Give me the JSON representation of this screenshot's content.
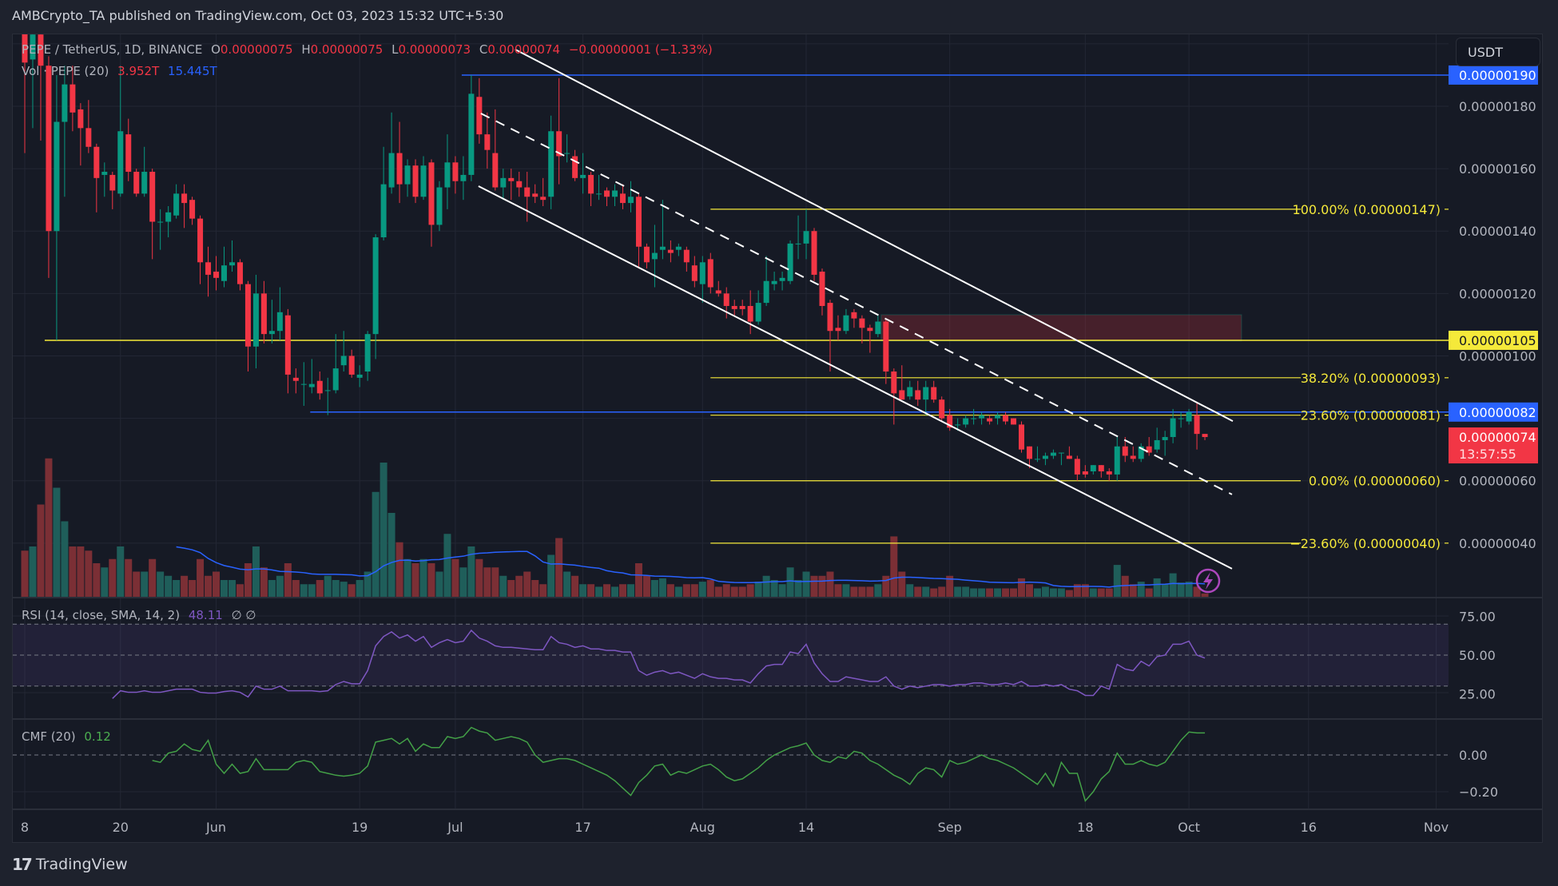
{
  "header": {
    "publish_line": "AMBCrypto_TA published on TradingView.com, Oct 03, 2023 15:32 UTC+5:30"
  },
  "legend": {
    "symbol": "PEPE / TetherUS, 1D, BINANCE",
    "o_label": "O",
    "o_value": "0.00000075",
    "h_label": "H",
    "h_value": "0.00000075",
    "l_label": "L",
    "l_value": "0.00000073",
    "c_label": "C",
    "c_value": "0.00000074",
    "change": "−0.00000001 (−1.33%)",
    "vol_label": "Vol · PEPE (20)",
    "vol_value": "3.952T",
    "vol_ma_value": "15.445T"
  },
  "currency_button": "USDT",
  "rsi_legend": {
    "label": "RSI (14, close, SMA, 14, 2)",
    "value": "48.11",
    "extra": "∅  ∅"
  },
  "cmf_legend": {
    "label": "CMF (20)",
    "value": "0.12"
  },
  "footer": {
    "brand": "TradingView",
    "logo_glyph": "17"
  },
  "colors": {
    "up": "#089981",
    "down": "#f23645",
    "vol_up": "#1f5e5a",
    "vol_down": "#7b2f35",
    "vol_ma": "#2962ff",
    "rsi": "#7e57c2",
    "cmf": "#43a047",
    "fib": "#f5e93a",
    "level_blue": "#2962ff",
    "level_yellow": "#f5e93a",
    "zone": "#6b1f2f",
    "channel": "#ffffff",
    "alert": "#ab47bc"
  },
  "chart_data": {
    "type": "candlestick",
    "price_unit": "1e-8 USDT",
    "start_date": "2023-05-08",
    "candles_ohlc": [
      [
        210,
        220,
        165,
        194
      ],
      [
        195,
        212,
        173,
        203
      ],
      [
        203,
        215,
        169,
        193
      ],
      [
        193,
        196,
        125,
        140
      ],
      [
        140,
        190,
        105,
        175
      ],
      [
        175,
        193,
        151,
        187
      ],
      [
        187,
        193,
        172,
        178
      ],
      [
        179,
        181,
        161,
        173
      ],
      [
        173,
        182,
        165,
        167
      ],
      [
        167,
        168,
        146,
        157
      ],
      [
        158,
        162,
        151,
        159
      ],
      [
        158,
        159,
        147,
        153
      ],
      [
        152,
        193,
        151,
        172
      ],
      [
        171,
        176,
        156,
        159
      ],
      [
        159,
        160,
        151,
        152
      ],
      [
        152,
        167,
        151,
        159
      ],
      [
        159,
        160,
        131,
        143
      ],
      [
        143,
        147,
        134,
        143
      ],
      [
        143,
        148,
        138,
        146
      ],
      [
        145,
        155,
        144,
        152
      ],
      [
        152,
        155,
        141,
        149
      ],
      [
        150,
        151,
        142,
        144
      ],
      [
        144,
        145,
        123,
        130
      ],
      [
        130,
        135,
        119,
        126
      ],
      [
        127,
        132,
        121,
        125
      ],
      [
        124,
        135,
        122,
        129
      ],
      [
        129,
        137,
        127,
        130
      ],
      [
        130,
        131,
        121,
        123
      ],
      [
        123,
        124,
        95,
        103
      ],
      [
        103,
        126,
        96,
        120
      ],
      [
        120,
        124,
        104,
        107
      ],
      [
        107,
        118,
        104,
        108
      ],
      [
        108,
        122,
        105,
        114
      ],
      [
        113,
        115,
        88,
        94
      ],
      [
        93,
        96,
        88,
        92
      ],
      [
        91,
        98,
        84,
        91
      ],
      [
        90,
        99,
        88,
        91
      ],
      [
        92,
        95,
        86,
        88
      ],
      [
        89,
        93,
        81,
        89
      ],
      [
        89,
        107,
        88,
        96
      ],
      [
        97,
        108,
        95,
        100
      ],
      [
        100,
        102,
        93,
        94
      ],
      [
        93,
        97,
        90,
        94
      ],
      [
        95,
        108,
        92,
        107
      ],
      [
        107,
        139,
        99,
        138
      ],
      [
        138,
        167,
        137,
        155
      ],
      [
        154,
        178,
        152,
        165
      ],
      [
        165,
        175,
        149,
        155
      ],
      [
        155,
        163,
        151,
        161
      ],
      [
        161,
        163,
        149,
        151
      ],
      [
        151,
        164,
        150,
        161
      ],
      [
        162,
        163,
        135,
        142
      ],
      [
        142,
        156,
        140,
        154
      ],
      [
        154,
        171,
        147,
        162
      ],
      [
        162,
        164,
        152,
        156
      ],
      [
        156,
        164,
        150,
        158
      ],
      [
        158,
        190,
        156,
        184
      ],
      [
        183,
        189,
        168,
        171
      ],
      [
        171,
        178,
        160,
        166
      ],
      [
        165,
        179,
        153,
        154
      ],
      [
        154,
        160,
        150,
        157
      ],
      [
        157,
        160,
        150,
        156
      ],
      [
        156,
        159,
        151,
        154
      ],
      [
        154,
        159,
        143,
        151
      ],
      [
        152,
        155,
        149,
        151
      ],
      [
        151,
        157,
        148,
        150
      ],
      [
        151,
        177,
        147,
        172
      ],
      [
        172,
        189,
        155,
        164
      ],
      [
        165,
        171,
        162,
        165
      ],
      [
        164,
        166,
        156,
        157
      ],
      [
        157,
        165,
        152,
        158
      ],
      [
        158,
        159,
        148,
        152
      ],
      [
        152,
        158,
        150,
        152
      ],
      [
        153,
        154,
        148,
        151
      ],
      [
        151,
        155,
        148,
        153
      ],
      [
        152,
        155,
        147,
        149
      ],
      [
        149,
        156,
        146,
        151
      ],
      [
        151,
        152,
        128,
        135
      ],
      [
        135,
        136,
        128,
        130
      ],
      [
        131,
        142,
        122,
        133
      ],
      [
        134,
        150,
        131,
        135
      ],
      [
        134,
        137,
        130,
        133
      ],
      [
        134,
        136,
        132,
        135
      ],
      [
        134,
        135,
        127,
        130
      ],
      [
        129,
        132,
        122,
        124
      ],
      [
        123,
        132,
        117,
        130
      ],
      [
        131,
        133,
        120,
        122
      ],
      [
        121,
        124,
        119,
        120
      ],
      [
        120,
        122,
        112,
        116
      ],
      [
        116,
        118,
        113,
        115
      ],
      [
        116,
        118,
        113,
        115
      ],
      [
        116,
        121,
        107,
        111
      ],
      [
        111,
        121,
        110,
        117
      ],
      [
        117,
        132,
        116,
        124
      ],
      [
        123,
        127,
        121,
        124
      ],
      [
        124,
        127,
        121,
        125
      ],
      [
        124,
        137,
        123,
        136
      ],
      [
        136,
        145,
        131,
        136
      ],
      [
        136,
        147,
        131,
        140
      ],
      [
        140,
        141,
        124,
        126
      ],
      [
        127,
        128,
        113,
        116
      ],
      [
        117,
        118,
        95,
        108
      ],
      [
        109,
        113,
        105,
        108
      ],
      [
        108,
        115,
        107,
        113
      ],
      [
        114,
        115,
        109,
        112
      ],
      [
        112,
        113,
        104,
        109
      ],
      [
        109,
        110,
        101,
        108
      ],
      [
        107,
        113,
        106,
        111
      ],
      [
        111,
        112,
        91,
        95
      ],
      [
        95,
        96,
        78,
        88
      ],
      [
        89,
        97,
        86,
        86
      ],
      [
        87,
        92,
        86,
        90
      ],
      [
        89,
        92,
        84,
        86
      ],
      [
        86,
        92,
        81,
        90
      ],
      [
        90,
        92,
        85,
        86
      ],
      [
        86,
        87,
        79,
        80
      ],
      [
        81,
        83,
        76,
        77
      ],
      [
        78,
        80,
        76,
        78
      ],
      [
        78,
        81,
        77,
        80
      ],
      [
        80,
        83,
        78,
        80
      ],
      [
        80,
        82,
        78,
        81
      ],
      [
        80,
        81,
        78,
        79
      ],
      [
        80,
        82,
        78,
        81
      ],
      [
        81,
        82,
        78,
        79
      ],
      [
        80,
        80,
        78,
        78
      ],
      [
        78,
        79,
        69,
        70
      ],
      [
        71,
        71,
        64,
        67
      ],
      [
        67,
        71,
        66,
        67
      ],
      [
        67,
        69,
        65,
        68
      ],
      [
        68,
        70,
        67,
        69
      ],
      [
        69,
        69,
        65,
        69
      ],
      [
        68,
        71,
        67,
        67
      ],
      [
        67,
        68,
        60,
        62
      ],
      [
        63,
        65,
        61,
        62
      ],
      [
        63,
        65,
        62,
        65
      ],
      [
        65,
        65,
        61,
        63
      ],
      [
        63,
        64,
        60,
        62
      ],
      [
        62,
        74,
        60,
        71
      ],
      [
        71,
        74,
        66,
        68
      ],
      [
        68,
        71,
        66,
        67
      ],
      [
        67,
        72,
        66,
        71
      ],
      [
        71,
        74,
        68,
        69
      ],
      [
        70,
        77,
        69,
        73
      ],
      [
        73,
        76,
        68,
        74
      ],
      [
        74,
        83,
        72,
        80
      ],
      [
        80,
        82,
        77,
        80
      ],
      [
        79,
        83,
        78,
        82
      ],
      [
        81,
        85,
        70,
        75
      ],
      [
        75,
        75,
        73,
        74
      ]
    ],
    "volume_T": [
      55,
      60,
      110,
      165,
      130,
      90,
      60,
      60,
      55,
      40,
      35,
      45,
      60,
      45,
      30,
      30,
      45,
      30,
      25,
      20,
      25,
      20,
      45,
      25,
      30,
      20,
      20,
      15,
      40,
      60,
      35,
      20,
      25,
      40,
      20,
      15,
      15,
      20,
      25,
      20,
      18,
      15,
      20,
      30,
      125,
      160,
      100,
      65,
      45,
      40,
      45,
      40,
      30,
      75,
      45,
      35,
      60,
      45,
      35,
      35,
      25,
      20,
      25,
      30,
      20,
      15,
      50,
      70,
      30,
      25,
      15,
      15,
      12,
      15,
      12,
      15,
      15,
      40,
      25,
      20,
      22,
      15,
      12,
      15,
      15,
      18,
      20,
      12,
      15,
      12,
      12,
      15,
      18,
      25,
      20,
      15,
      35,
      20,
      30,
      25,
      25,
      30,
      15,
      15,
      12,
      12,
      12,
      15,
      25,
      72,
      30,
      15,
      12,
      12,
      10,
      12,
      25,
      12,
      12,
      10,
      10,
      10,
      10,
      10,
      10,
      22,
      15,
      10,
      12,
      10,
      10,
      8,
      15,
      15,
      10,
      10,
      10,
      38,
      25,
      15,
      18,
      10,
      22,
      15,
      28,
      17,
      18,
      12,
      4
    ],
    "vol_ma_period": 20,
    "rsi_start_index": 11,
    "rsi": [
      22,
      27,
      26,
      26,
      27,
      26,
      26,
      27,
      28,
      28,
      28,
      26,
      25.5,
      25.5,
      26.5,
      27,
      26,
      23,
      30,
      28,
      28,
      30,
      27,
      27,
      27,
      27,
      26.5,
      27,
      31,
      33,
      31.5,
      31.5,
      40,
      56,
      62,
      65,
      61,
      63,
      59,
      62,
      55,
      58,
      60,
      58,
      59,
      66,
      61,
      59,
      56,
      55,
      55,
      54.5,
      54,
      53.5,
      53.5,
      62,
      58,
      57,
      55,
      56,
      54,
      54,
      53,
      53,
      52,
      52,
      40,
      37,
      39,
      40,
      38,
      39,
      37,
      35,
      38,
      36,
      35,
      35,
      34,
      34,
      32,
      38,
      43,
      44,
      44,
      52,
      51,
      57,
      45,
      38,
      33,
      33,
      36,
      35,
      34,
      33,
      33,
      36,
      30,
      28,
      30,
      29,
      30,
      31,
      31,
      30,
      31,
      31,
      32,
      32,
      31,
      31,
      32,
      31,
      33,
      30,
      30,
      31,
      30,
      31,
      28,
      27,
      24,
      24,
      30,
      28,
      44,
      41,
      40,
      46,
      43,
      49,
      50,
      57,
      57,
      59,
      50,
      48.11
    ],
    "rsi_bands": [
      70,
      50,
      30
    ],
    "cmf_start_index": 16,
    "cmf": [
      -0.03,
      -0.04,
      0.01,
      0.02,
      0.06,
      0.03,
      0.02,
      0.08,
      -0.05,
      -0.1,
      -0.05,
      -0.1,
      -0.09,
      -0.02,
      -0.08,
      -0.08,
      -0.08,
      -0.08,
      -0.04,
      -0.03,
      -0.04,
      -0.09,
      -0.1,
      -0.11,
      -0.115,
      -0.11,
      -0.1,
      -0.06,
      0.07,
      0.08,
      0.09,
      0.06,
      0.09,
      0.02,
      0.06,
      0.04,
      0.04,
      0.1,
      0.09,
      0.1,
      0.15,
      0.13,
      0.12,
      0.08,
      0.09,
      0.1,
      0.09,
      0.07,
      0.0,
      -0.04,
      -0.03,
      -0.02,
      -0.02,
      -0.03,
      -0.05,
      -0.07,
      -0.09,
      -0.11,
      -0.14,
      -0.18,
      -0.22,
      -0.15,
      -0.11,
      -0.06,
      -0.05,
      -0.11,
      -0.09,
      -0.1,
      -0.08,
      -0.06,
      -0.05,
      -0.08,
      -0.12,
      -0.14,
      -0.13,
      -0.1,
      -0.07,
      -0.03,
      0.0,
      0.02,
      0.04,
      0.05,
      0.065,
      0.0,
      -0.03,
      -0.04,
      -0.01,
      -0.02,
      0.02,
      0.01,
      -0.03,
      -0.05,
      -0.08,
      -0.11,
      -0.13,
      -0.16,
      -0.1,
      -0.07,
      -0.08,
      -0.12,
      -0.03,
      -0.05,
      -0.04,
      -0.02,
      0.0,
      -0.02,
      -0.03,
      -0.05,
      -0.07,
      -0.1,
      -0.13,
      -0.16,
      -0.1,
      -0.17,
      -0.04,
      -0.1,
      -0.1,
      -0.25,
      -0.2,
      -0.13,
      -0.09,
      0.01,
      -0.05,
      -0.05,
      -0.03,
      -0.05,
      -0.06,
      -0.04,
      0.02,
      0.08,
      0.125,
      0.12,
      0.12
    ],
    "x_ticks": [
      {
        "label": "8",
        "index": 0
      },
      {
        "label": "20",
        "index": 12
      },
      {
        "label": "Jun",
        "index": 24
      },
      {
        "label": "19",
        "index": 42
      },
      {
        "label": "Jul",
        "index": 54
      },
      {
        "label": "17",
        "index": 70
      },
      {
        "label": "Aug",
        "index": 85
      },
      {
        "label": "14",
        "index": 98
      },
      {
        "label": "Sep",
        "index": 116
      },
      {
        "label": "18",
        "index": 133
      },
      {
        "label": "Oct",
        "index": 146
      },
      {
        "label": "16",
        "index": 161
      },
      {
        "label": "Nov",
        "index": 177
      }
    ],
    "price_ticks": [
      {
        "label": "0.00000180",
        "price": 180
      },
      {
        "label": "0.00000160",
        "price": 160
      },
      {
        "label": "0.00000140",
        "price": 140
      },
      {
        "label": "0.00000120",
        "price": 120
      },
      {
        "label": "0.00000100",
        "price": 100
      },
      {
        "label": "0.00000060",
        "price": 60
      },
      {
        "label": "0.00000040",
        "price": 40
      }
    ],
    "grid_prices": [
      200,
      180,
      160,
      140,
      120,
      100,
      80,
      60,
      40
    ],
    "rsi_ticks": [
      {
        "label": "75.00",
        "value": 75
      },
      {
        "label": "50.00",
        "value": 50
      },
      {
        "label": "25.00",
        "value": 25
      }
    ],
    "cmf_ticks": [
      {
        "label": "0.00",
        "value": 0
      },
      {
        "label": "−0.20",
        "value": -0.2
      }
    ],
    "horizontal_levels": [
      {
        "label": "0.00000190",
        "price": 190,
        "from_index": 54.8,
        "color": "#2962ff",
        "text_color": "#ffffff"
      },
      {
        "label": "0.00000105",
        "price": 105,
        "from_index": 2.5,
        "color": "#f5e93a",
        "text_color": "#131722"
      },
      {
        "label": "0.00000082",
        "price": 82,
        "from_index": 35.8,
        "color": "#2962ff",
        "text_color": "#ffffff"
      }
    ],
    "last_price": {
      "label": "0.00000074",
      "countdown": "13:57:55",
      "price": 74,
      "color": "#f23645"
    },
    "fib_from_index": 86,
    "fib_levels": [
      {
        "label": "100.00% (0.00000147)",
        "price": 147
      },
      {
        "label": "38.20% (0.00000093)",
        "price": 93
      },
      {
        "label": "23.60% (0.00000081)",
        "price": 81
      },
      {
        "label": "0.00% (0.00000060)",
        "price": 60
      },
      {
        "label": "−23.60% (0.00000040)",
        "price": 40
      }
    ],
    "resistance_zone": {
      "from_index": 107.4,
      "to_index": 152.6,
      "price_top": 113.2,
      "price_bottom": 104.8
    },
    "channel": [
      {
        "name": "upper",
        "dashed": false,
        "from": [
          61.5,
          198.2
        ],
        "to": [
          151.5,
          79.1
        ]
      },
      {
        "name": "middle",
        "dashed": true,
        "from": [
          57.2,
          177.7
        ],
        "to": [
          151.4,
          55.6
        ]
      },
      {
        "name": "lower",
        "dashed": false,
        "from": [
          56.9,
          154.4
        ],
        "to": [
          151.4,
          31.8
        ]
      }
    ]
  }
}
